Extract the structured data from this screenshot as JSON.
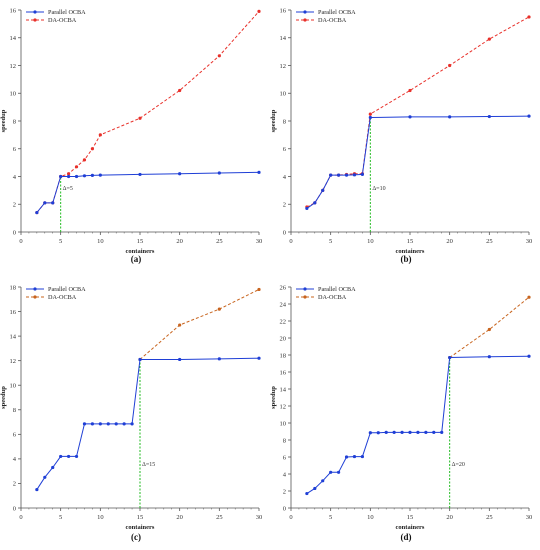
{
  "colors": {
    "parallel": "#1f3fd6",
    "da": "#e8302a",
    "marker_line": "#22bb22",
    "axis": "#555555"
  },
  "chart_data": [
    {
      "type": "line",
      "panel_label": "(a)",
      "xlabel": "containers",
      "ylabel": "speedup",
      "xlim": [
        0,
        30
      ],
      "ylim": [
        0,
        16
      ],
      "xticks": [
        0,
        5,
        10,
        15,
        20,
        25,
        30
      ],
      "yticks": [
        0,
        2,
        4,
        6,
        8,
        10,
        12,
        14,
        16
      ],
      "grid": false,
      "legend_position": "top-left",
      "annotation": {
        "x": 5,
        "text": "Δ=5"
      },
      "series": [
        {
          "name": "Parallel OCBA",
          "color": "#1f3fd6",
          "style": "solid",
          "points": [
            [
              2,
              1.4
            ],
            [
              3,
              2.1
            ],
            [
              4,
              2.1
            ],
            [
              5,
              4.0
            ],
            [
              6,
              4.0
            ],
            [
              7,
              4.0
            ],
            [
              8,
              4.05
            ],
            [
              9,
              4.08
            ],
            [
              10,
              4.1
            ],
            [
              15,
              4.15
            ],
            [
              20,
              4.2
            ],
            [
              25,
              4.25
            ],
            [
              30,
              4.3
            ]
          ]
        },
        {
          "name": "DA-OCBA",
          "color": "#e8302a",
          "style": "dashed",
          "points": [
            [
              2,
              1.4
            ],
            [
              3,
              2.1
            ],
            [
              4,
              2.1
            ],
            [
              5,
              4.0
            ],
            [
              6,
              4.2
            ],
            [
              7,
              4.7
            ],
            [
              8,
              5.2
            ],
            [
              9,
              6.0
            ],
            [
              10,
              7.0
            ],
            [
              15,
              8.2
            ],
            [
              20,
              10.2
            ],
            [
              25,
              12.7
            ],
            [
              30,
              15.9
            ]
          ]
        }
      ]
    },
    {
      "type": "line",
      "panel_label": "(b)",
      "xlabel": "containers",
      "ylabel": "speedup",
      "xlim": [
        0,
        30
      ],
      "ylim": [
        0,
        16
      ],
      "xticks": [
        0,
        5,
        10,
        15,
        20,
        25,
        30
      ],
      "yticks": [
        0,
        2,
        4,
        6,
        8,
        10,
        12,
        14,
        16
      ],
      "grid": false,
      "legend_position": "top-left",
      "annotation": {
        "x": 10,
        "text": "Δ=10"
      },
      "series": [
        {
          "name": "Parallel OCBA",
          "color": "#1f3fd6",
          "style": "solid",
          "points": [
            [
              2,
              1.7
            ],
            [
              3,
              2.1
            ],
            [
              4,
              3.0
            ],
            [
              5,
              4.1
            ],
            [
              6,
              4.1
            ],
            [
              7,
              4.1
            ],
            [
              8,
              4.12
            ],
            [
              9,
              4.15
            ],
            [
              10,
              8.25
            ],
            [
              15,
              8.3
            ],
            [
              20,
              8.3
            ],
            [
              25,
              8.32
            ],
            [
              30,
              8.35
            ]
          ]
        },
        {
          "name": "DA-OCBA",
          "color": "#e8302a",
          "style": "dashed",
          "points": [
            [
              2,
              1.8
            ],
            [
              3,
              2.1
            ],
            [
              4,
              3.0
            ],
            [
              5,
              4.1
            ],
            [
              6,
              4.1
            ],
            [
              7,
              4.15
            ],
            [
              8,
              4.2
            ],
            [
              9,
              4.2
            ],
            [
              10,
              8.5
            ],
            [
              15,
              10.2
            ],
            [
              20,
              12.0
            ],
            [
              25,
              13.9
            ],
            [
              30,
              15.5
            ]
          ]
        }
      ]
    },
    {
      "type": "line",
      "panel_label": "(c)",
      "xlabel": "containers",
      "ylabel": "speedup",
      "xlim": [
        0,
        30
      ],
      "ylim": [
        0,
        18
      ],
      "xticks": [
        0,
        5,
        10,
        15,
        20,
        25,
        30
      ],
      "yticks": [
        0,
        2,
        4,
        6,
        8,
        10,
        12,
        14,
        16,
        18
      ],
      "grid": false,
      "legend_position": "top-left",
      "annotation": {
        "x": 15,
        "text": "Δ=15"
      },
      "series": [
        {
          "name": "Parallel OCBA",
          "color": "#1f3fd6",
          "style": "solid",
          "points": [
            [
              2,
              1.5
            ],
            [
              3,
              2.5
            ],
            [
              4,
              3.3
            ],
            [
              5,
              4.2
            ],
            [
              6,
              4.2
            ],
            [
              7,
              4.2
            ],
            [
              8,
              6.85
            ],
            [
              9,
              6.85
            ],
            [
              10,
              6.85
            ],
            [
              11,
              6.85
            ],
            [
              12,
              6.85
            ],
            [
              13,
              6.85
            ],
            [
              14,
              6.85
            ],
            [
              15,
              12.1
            ],
            [
              20,
              12.1
            ],
            [
              25,
              12.15
            ],
            [
              30,
              12.2
            ]
          ]
        },
        {
          "name": "DA-OCBA",
          "color": "#c8641e",
          "style": "dashed",
          "points": [
            [
              15,
              12.1
            ],
            [
              20,
              14.9
            ],
            [
              25,
              16.2
            ],
            [
              30,
              17.8
            ]
          ]
        }
      ]
    },
    {
      "type": "line",
      "panel_label": "(d)",
      "xlabel": "containers",
      "ylabel": "speedup",
      "xlim": [
        0,
        30
      ],
      "ylim": [
        0,
        26
      ],
      "xticks": [
        0,
        5,
        10,
        15,
        20,
        25,
        30
      ],
      "yticks": [
        0,
        2,
        4,
        6,
        8,
        10,
        12,
        14,
        16,
        18,
        20,
        22,
        24,
        26
      ],
      "grid": false,
      "legend_position": "top-left",
      "annotation": {
        "x": 20,
        "text": "Δ=20"
      },
      "series": [
        {
          "name": "Parallel OCBA",
          "color": "#1f3fd6",
          "style": "solid",
          "points": [
            [
              2,
              1.7
            ],
            [
              3,
              2.3
            ],
            [
              4,
              3.2
            ],
            [
              5,
              4.2
            ],
            [
              6,
              4.2
            ],
            [
              7,
              6.0
            ],
            [
              8,
              6.05
            ],
            [
              9,
              6.05
            ],
            [
              10,
              8.85
            ],
            [
              11,
              8.85
            ],
            [
              12,
              8.9
            ],
            [
              13,
              8.9
            ],
            [
              14,
              8.9
            ],
            [
              15,
              8.9
            ],
            [
              16,
              8.9
            ],
            [
              17,
              8.9
            ],
            [
              18,
              8.9
            ],
            [
              19,
              8.9
            ],
            [
              20,
              17.7
            ],
            [
              25,
              17.8
            ],
            [
              30,
              17.85
            ]
          ]
        },
        {
          "name": "DA-OCBA",
          "color": "#c8641e",
          "style": "dashed",
          "points": [
            [
              20,
              17.7
            ],
            [
              25,
              21.0
            ],
            [
              30,
              24.8
            ]
          ]
        }
      ]
    }
  ]
}
